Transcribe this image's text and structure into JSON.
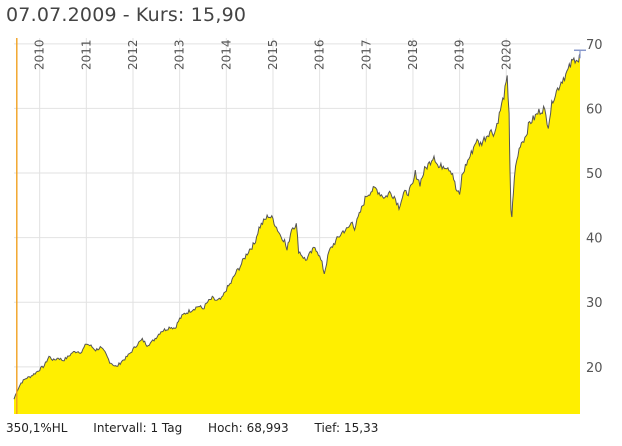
{
  "header": {
    "date": "07.07.2009",
    "separator": "-",
    "price_label": "Kurs: 15,90"
  },
  "footer": {
    "performance": "350,1%HL",
    "interval": "Intervall: 1 Tag",
    "high_label": "Hoch:",
    "high_value": "68,993",
    "low_label": "Tief:",
    "low_value": "15,33"
  },
  "colors": {
    "fill": "#ffef00",
    "line": "#555555",
    "grid": "#e2e2e2",
    "cursor": "#f0a020",
    "marker": "#8899cc"
  },
  "chart_data": {
    "type": "area",
    "title": "",
    "xlabel": "",
    "ylabel": "",
    "xlim": [
      2009.45,
      2021.58
    ],
    "ylim": [
      12.7,
      70.9
    ],
    "y_axis_position": "right",
    "yticks": [
      20,
      30,
      40,
      50,
      60,
      70
    ],
    "x_tick_labels": [
      "2010",
      "2011",
      "2012",
      "2013",
      "2014",
      "2015",
      "2016",
      "2017",
      "2018",
      "2019",
      "2020"
    ],
    "x_tick_positions": [
      2010,
      2011,
      2012,
      2013,
      2014,
      2015,
      2016,
      2017,
      2018,
      2019,
      2020
    ],
    "grid": true,
    "cursor_x": 2009.51,
    "series": [
      {
        "x": [
          2009.45,
          2009.51,
          2009.6,
          2009.7,
          2009.8,
          2009.9,
          2010.0,
          2010.1,
          2010.2,
          2010.3,
          2010.4,
          2010.5,
          2010.6,
          2010.7,
          2010.8,
          2010.9,
          2011.0,
          2011.1,
          2011.2,
          2011.3,
          2011.4,
          2011.5,
          2011.6,
          2011.65,
          2011.75,
          2011.85,
          2011.95,
          2012.1,
          2012.2,
          2012.3,
          2012.4,
          2012.5,
          2012.6,
          2012.7,
          2012.8,
          2012.9,
          2013.0,
          2013.1,
          2013.2,
          2013.3,
          2013.4,
          2013.5,
          2013.6,
          2013.7,
          2013.8,
          2013.9,
          2014.0,
          2014.1,
          2014.2,
          2014.3,
          2014.4,
          2014.5,
          2014.6,
          2014.7,
          2014.8,
          2014.9,
          2015.0,
          2015.05,
          2015.15,
          2015.25,
          2015.3,
          2015.4,
          2015.5,
          2015.55,
          2015.6,
          2015.7,
          2015.8,
          2015.9,
          2015.95,
          2016.05,
          2016.1,
          2016.2,
          2016.3,
          2016.4,
          2016.5,
          2016.6,
          2016.7,
          2016.75,
          2016.85,
          2017.0,
          2017.1,
          2017.2,
          2017.3,
          2017.4,
          2017.5,
          2017.6,
          2017.7,
          2017.8,
          2017.9,
          2018.0,
          2018.05,
          2018.15,
          2018.25,
          2018.35,
          2018.45,
          2018.55,
          2018.65,
          2018.75,
          2018.85,
          2018.92,
          2019.0,
          2019.05,
          2019.15,
          2019.25,
          2019.35,
          2019.45,
          2019.55,
          2019.65,
          2019.75,
          2019.85,
          2019.95,
          2020.02,
          2020.06,
          2020.08,
          2020.1,
          2020.12,
          2020.15,
          2020.2,
          2020.3,
          2020.4,
          2020.5,
          2020.6,
          2020.7,
          2020.8,
          2020.9,
          2021.0,
          2021.1,
          2021.2,
          2021.3,
          2021.4,
          2021.5,
          2021.55,
          2021.58
        ],
        "y": [
          15.0,
          16.2,
          17.5,
          18.2,
          18.5,
          19.0,
          19.6,
          20.2,
          21.6,
          21.0,
          21.4,
          21.0,
          21.5,
          22.2,
          22.4,
          22.3,
          23.6,
          23.2,
          22.6,
          23.0,
          22.2,
          20.8,
          20.2,
          20.0,
          20.8,
          21.4,
          22.2,
          23.6,
          24.2,
          23.4,
          23.8,
          24.6,
          25.5,
          25.8,
          26.2,
          26.0,
          27.4,
          28.2,
          28.6,
          29.0,
          29.4,
          29.0,
          30.0,
          30.6,
          30.2,
          30.5,
          32.0,
          33.0,
          34.5,
          35.6,
          37.0,
          38.2,
          39.0,
          41.5,
          42.5,
          43.4,
          42.9,
          42.0,
          40.5,
          39.5,
          38.0,
          41.5,
          42.0,
          38.0,
          37.5,
          36.5,
          37.5,
          38.5,
          38.0,
          36.0,
          34.5,
          37.8,
          39.0,
          40.0,
          41.0,
          41.3,
          42.5,
          41.5,
          43.5,
          46.5,
          47.2,
          47.6,
          46.8,
          46.2,
          47.0,
          46.4,
          44.8,
          46.8,
          47.0,
          48.2,
          50.0,
          48.4,
          50.5,
          51.5,
          52.8,
          50.8,
          51.2,
          51.0,
          50.0,
          47.5,
          46.5,
          49.5,
          51.5,
          53.0,
          55.0,
          54.5,
          55.5,
          56.5,
          56.2,
          59.0,
          62.0,
          64.5,
          59.5,
          50.0,
          44.0,
          43.3,
          47.0,
          51.0,
          54.5,
          55.5,
          57.8,
          58.5,
          59.5,
          60.0,
          57.5,
          61.5,
          63.0,
          64.5,
          65.5,
          67.0,
          68.0,
          67.2,
          68.5
        ]
      }
    ]
  }
}
